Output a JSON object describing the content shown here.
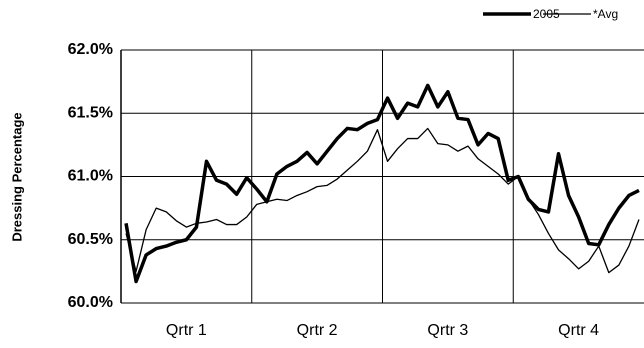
{
  "chart_data": {
    "type": "line",
    "y_label": "Dressing Percentage",
    "x": [
      0.5,
      1.5,
      2.5,
      3.5,
      4.5,
      5.5,
      6.5,
      7.5,
      8.5,
      9.5,
      10.5,
      11.5,
      12.5,
      13.5,
      14.5,
      15.5,
      16.5,
      17.5,
      18.5,
      19.5,
      20.5,
      21.5,
      22.5,
      23.5,
      24.5,
      25.5,
      26.5,
      27.5,
      28.5,
      29.5,
      30.5,
      31.5,
      32.5,
      33.5,
      34.5,
      35.5,
      36.5,
      37.5,
      38.5,
      39.5,
      40.5,
      41.5,
      42.5,
      43.5,
      44.5,
      45.5,
      46.5,
      47.5,
      48.5,
      49.5,
      50.5,
      51.5
    ],
    "xlim": [
      0,
      52
    ],
    "xticks": [
      {
        "value": 6.5,
        "label": "Qrtr 1"
      },
      {
        "value": 19.5,
        "label": "Qrtr 2"
      },
      {
        "value": 32.5,
        "label": "Qrtr 3"
      },
      {
        "value": 45.5,
        "label": "Qrtr 4"
      }
    ],
    "ylim": [
      60,
      62
    ],
    "yticks": [
      {
        "value": 60,
        "label": "60.0%"
      },
      {
        "value": 60.5,
        "label": "60.5%"
      },
      {
        "value": 61,
        "label": "61.0%"
      },
      {
        "value": 61.5,
        "label": "61.5%"
      },
      {
        "value": 62,
        "label": "62.0%"
      }
    ],
    "grid": true,
    "legend": "top-right",
    "series": [
      {
        "name": "2005",
        "color": "#000000",
        "values": [
          60.63,
          60.17,
          60.38,
          60.43,
          60.45,
          60.48,
          60.5,
          60.6,
          61.12,
          60.97,
          60.94,
          60.86,
          60.99,
          60.9,
          60.8,
          61.02,
          61.08,
          61.12,
          61.19,
          61.1,
          61.2,
          61.3,
          61.38,
          61.37,
          61.42,
          61.45,
          61.62,
          61.46,
          61.58,
          61.55,
          61.72,
          61.55,
          61.67,
          61.46,
          61.45,
          61.25,
          61.34,
          61.3,
          60.97,
          61.0,
          60.82,
          60.74,
          60.72,
          61.18,
          60.85,
          60.68,
          60.47,
          60.46,
          60.62,
          60.75,
          60.85,
          60.89
        ]
      },
      {
        "name": "*Avg",
        "color": "#000000",
        "values": [
          60.55,
          60.25,
          60.58,
          60.75,
          60.72,
          60.65,
          60.6,
          60.63,
          60.64,
          60.66,
          60.62,
          60.62,
          60.68,
          60.78,
          60.8,
          60.82,
          60.81,
          60.85,
          60.88,
          60.92,
          60.93,
          60.98,
          61.05,
          61.12,
          61.2,
          61.37,
          61.12,
          61.22,
          61.3,
          61.3,
          61.38,
          61.26,
          61.25,
          61.2,
          61.24,
          61.14,
          61.08,
          61.02,
          60.94,
          61.0,
          60.82,
          60.7,
          60.55,
          60.42,
          60.35,
          60.27,
          60.33,
          60.45,
          60.24,
          60.3,
          60.45,
          60.66
        ]
      }
    ]
  }
}
